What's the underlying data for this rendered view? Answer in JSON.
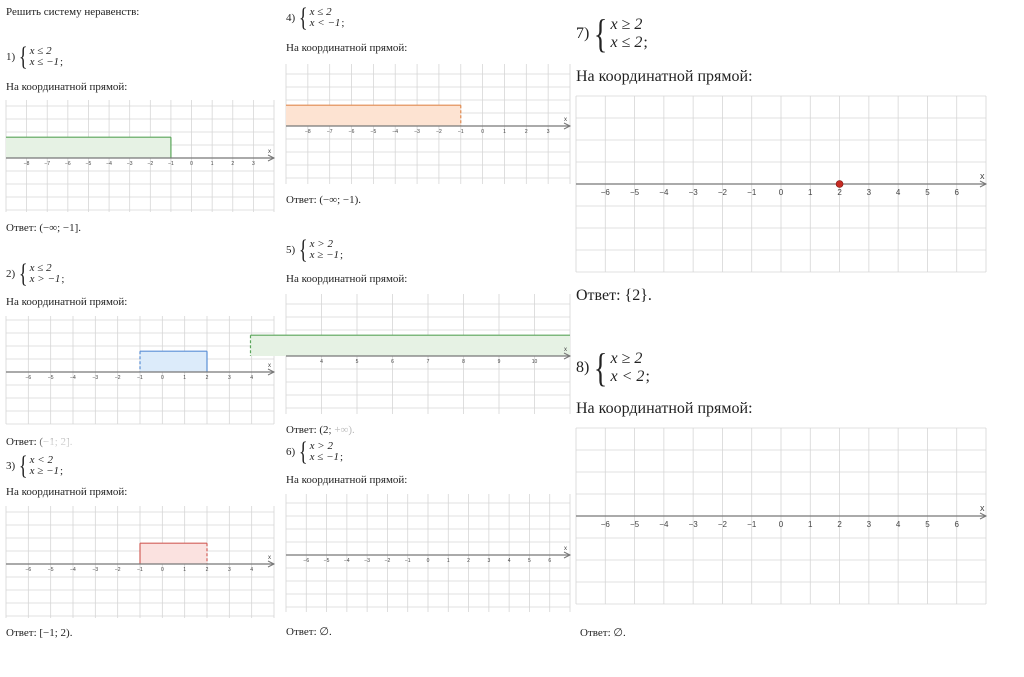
{
  "title": "Решить систему неравенств:",
  "line_label": "На координатной прямой:",
  "problems": [
    {
      "num": "1)",
      "lines": [
        "x ≤ 2",
        "x ≤ −1"
      ],
      "answer": "Ответ:  (−∞; −1].",
      "plot": {
        "min": -9,
        "max": 4,
        "ticks": [
          -8,
          -7,
          -6,
          -5,
          -4,
          -3,
          -2,
          -1,
          0,
          1,
          2,
          3
        ],
        "region": {
          "from": "-inf",
          "to": -1,
          "color": "green"
        }
      }
    },
    {
      "num": "2)",
      "lines": [
        "x ≤ 2",
        "x > −1"
      ],
      "answer": "Ответ: (−1; 2].",
      "plot": {
        "min": -7,
        "max": 5,
        "ticks": [
          -6,
          -5,
          -4,
          -3,
          -2,
          -1,
          0,
          1,
          2,
          3,
          4
        ],
        "region": {
          "from": -1,
          "to": 2,
          "color": "blue",
          "left_dashed": true
        }
      }
    },
    {
      "num": "3)",
      "lines": [
        "x < 2",
        "x ≥ −1"
      ],
      "answer": "Ответ:  [−1; 2).",
      "plot": {
        "min": -7,
        "max": 5,
        "ticks": [
          -6,
          -5,
          -4,
          -3,
          -2,
          -1,
          0,
          1,
          2,
          3,
          4
        ],
        "region": {
          "from": -1,
          "to": 2,
          "color": "red",
          "right_dashed": true
        }
      }
    },
    {
      "num": "4)",
      "lines": [
        "x ≤ 2",
        "x < −1"
      ],
      "answer": "Ответ:  (−∞; −1).",
      "plot": {
        "min": -9,
        "max": 4,
        "ticks": [
          -8,
          -7,
          -6,
          -5,
          -4,
          -3,
          -2,
          -1,
          0,
          1,
          2,
          3
        ],
        "region": {
          "from": "-inf",
          "to": -1,
          "color": "orange",
          "right_dashed": true
        }
      }
    },
    {
      "num": "5)",
      "lines": [
        "x > 2",
        "x ≥ −1"
      ],
      "answer": "Ответ: (2; +∞).",
      "plot": {
        "min": 3,
        "max": 11,
        "ticks": [
          4,
          5,
          6,
          7,
          8,
          9,
          10
        ],
        "region": {
          "from": 2,
          "to": "inf",
          "color": "green",
          "left_dashed": true
        }
      }
    },
    {
      "num": "6)",
      "lines": [
        "x > 2",
        "x ≤ −1"
      ],
      "answer": "Ответ:  ∅.",
      "plot": {
        "min": -7,
        "max": 7,
        "ticks": [
          -6,
          -5,
          -4,
          -3,
          -2,
          -1,
          0,
          1,
          2,
          3,
          4,
          5,
          6
        ],
        "region": null
      }
    },
    {
      "num": "7)",
      "lines": [
        "x ≥ 2",
        "x ≤ 2"
      ],
      "answer": "Ответ:  {2}.",
      "plot": {
        "min": -7,
        "max": 7,
        "ticks": [
          -6,
          -5,
          -4,
          -3,
          -2,
          -1,
          0,
          1,
          2,
          3,
          4,
          5,
          6
        ],
        "region": null,
        "point": 2
      }
    },
    {
      "num": "8)",
      "lines": [
        "x ≥ 2",
        "x < 2"
      ],
      "answer": "Ответ:  ∅.",
      "plot": {
        "min": -7,
        "max": 7,
        "ticks": [
          -6,
          -5,
          -4,
          -3,
          -2,
          -1,
          0,
          1,
          2,
          3,
          4,
          5,
          6
        ],
        "region": null
      }
    }
  ],
  "axis_label": "x",
  "semicolon": ";",
  "colors": {
    "green": {
      "fill": "#e6f2e4",
      "stroke": "#5aa55a"
    },
    "blue": {
      "fill": "#dcebfa",
      "stroke": "#5b8fd6"
    },
    "red": {
      "fill": "#fbe2e0",
      "stroke": "#d2605a"
    },
    "orange": {
      "fill": "#fde3d2",
      "stroke": "#e08a50"
    },
    "point": "#c62a22",
    "grid": "#d6d6d6",
    "axis": "#777777"
  }
}
